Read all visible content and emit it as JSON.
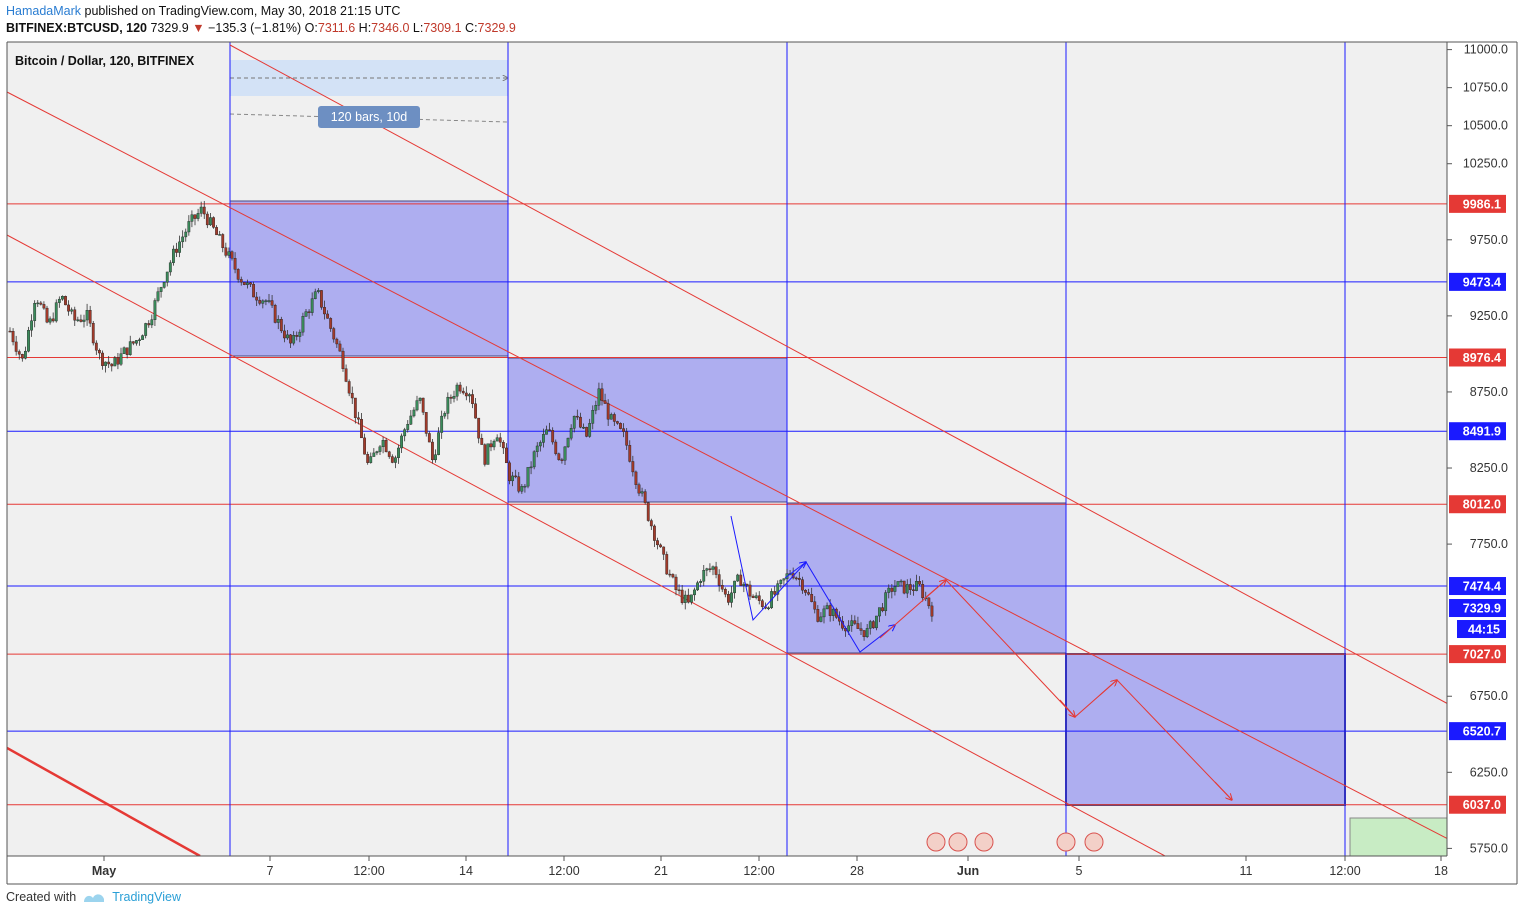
{
  "header": {
    "author": "HamadaMark",
    "published": "published on TradingView.com, May 30, 2018 21:15 UTC",
    "symbol": "BITFINEX:BTCUSD, 120",
    "last": "7329.9",
    "change": "−135.3 (−1.81%)",
    "o_label": "O:",
    "o": "7311.6",
    "h_label": "H:",
    "h": "7346.0",
    "l_label": "L:",
    "l": "7309.1",
    "c_label": "C:",
    "c": "7329.9"
  },
  "footer": {
    "created_with": "Created with",
    "brand": "TradingView"
  },
  "chart_data": {
    "type": "candlestick",
    "title": "Bitcoin / Dollar, 120, BITFINEX",
    "measure_label": "120 bars, 10d",
    "ylim": [
      5700,
      11050
    ],
    "y_ticks": [
      "11000.0",
      "10750.0",
      "10500.0",
      "10250.0",
      "9750.0",
      "9250.0",
      "8750.0",
      "8250.0",
      "7750.0",
      "6750.0",
      "6250.0",
      "5750.0"
    ],
    "x_ticks": [
      "May",
      "7",
      "12:00",
      "14",
      "12:00",
      "21",
      "12:00",
      "28",
      "Jun",
      "5",
      "11",
      "12:00",
      "18"
    ],
    "price_levels": [
      {
        "value": 9986.1,
        "label": "9986.1",
        "color": "#e53935"
      },
      {
        "value": 9473.4,
        "label": "9473.4",
        "color": "#1a1aff"
      },
      {
        "value": 8976.4,
        "label": "8976.4",
        "color": "#e53935"
      },
      {
        "value": 8491.9,
        "label": "8491.9",
        "color": "#1a1aff"
      },
      {
        "value": 8012.0,
        "label": "8012.0",
        "color": "#e53935"
      },
      {
        "value": 7474.4,
        "label": "7474.4",
        "color": "#1a1aff"
      },
      {
        "value": 7027.0,
        "label": "7027.0",
        "color": "#e53935"
      },
      {
        "value": 6520.7,
        "label": "6520.7",
        "color": "#1a1aff"
      },
      {
        "value": 6037.0,
        "label": "6037.0",
        "color": "#e53935"
      }
    ],
    "last_price": {
      "value": 7329.9,
      "label": "7329.9",
      "countdown": "44:15"
    },
    "candle_path": [
      9150,
      8950,
      9400,
      9180,
      9380,
      9220,
      9250,
      8980,
      8920,
      9020,
      9100,
      9250,
      9500,
      9700,
      9850,
      9950,
      9800,
      9650,
      9500,
      9400,
      9350,
      9200,
      9050,
      9250,
      9400,
      9180,
      8950,
      8600,
      8250,
      8450,
      8300,
      8550,
      8700,
      8300,
      8650,
      8800,
      8750,
      8300,
      8500,
      8200,
      8100,
      8350,
      8500,
      8300,
      8600,
      8450,
      8750,
      8550,
      8450,
      8150,
      7900,
      7650,
      7450,
      7350,
      7550,
      7600,
      7380,
      7530,
      7400,
      7350,
      7450,
      7580,
      7480,
      7280,
      7320,
      7230,
      7200,
      7170,
      7330,
      7480,
      7460,
      7470,
      7320
    ]
  },
  "colors": {
    "box_fill": "#9999f0",
    "channel": "#e53935",
    "vline": "#1a1aff",
    "candle_up": "#3a8a5a",
    "candle_down": "#a23a2a"
  }
}
